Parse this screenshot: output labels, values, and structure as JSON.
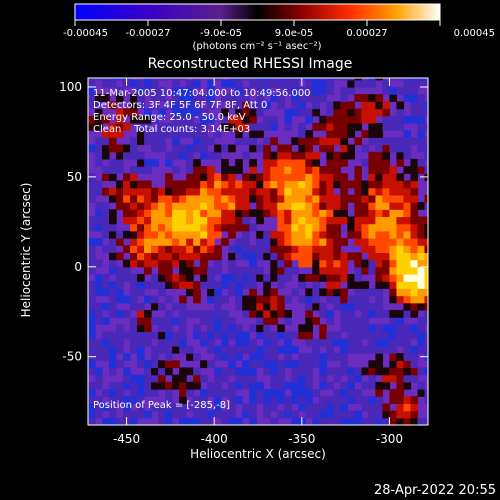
{
  "chart_data": {
    "type": "heatmap",
    "title": "Reconstructed RHESSI Image",
    "xlabel": "Heliocentric X (arcsec)",
    "ylabel": "Heliocentric Y (arcsec)",
    "xlim": [
      -472,
      -278
    ],
    "ylim": [
      -88,
      105
    ],
    "x_ticks": [
      -450,
      -400,
      -350,
      -300
    ],
    "y_ticks": [
      -50,
      0,
      50,
      100
    ],
    "colorbar": {
      "range": [
        -0.00045,
        0.00045
      ],
      "tick_values": [
        -0.00045,
        -0.00027,
        -9e-05,
        9e-05,
        0.00027,
        0.00045
      ],
      "tick_labels": [
        "-0.00045",
        "-0.00027",
        "-9.0e-05",
        "9.0e-05",
        "0.00027",
        "0.00045"
      ],
      "unit_label": "(photons cm⁻² s⁻¹ asec⁻²)"
    },
    "annotations": [
      "11-Mar-2005 10:47:04.000 to 10:49:56.000",
      "Detectors: 3F 4F 5F 6F 7F 8F, Att 0",
      "Energy Range: 25.0 - 50.0 keV",
      "Clean    Total counts: 3.14E+03"
    ],
    "peak_label": "Position of Peak = [-285,-8]",
    "peak_position": [
      -285,
      -8
    ],
    "colors": {
      "background": "#000000",
      "text": "#ffffff"
    }
  },
  "footer": {
    "timestamp": "28-Apr-2022 20:55"
  }
}
